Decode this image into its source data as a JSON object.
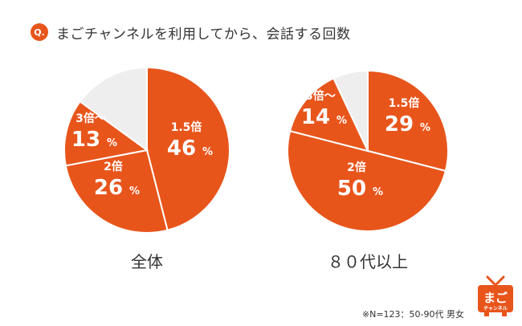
{
  "question": {
    "badge": "Q.",
    "title": "まごチャンネルを利用してから、会話する回数"
  },
  "colors": {
    "accent": "#e8551b",
    "other": "#ffffff",
    "empty": "#eeeeee"
  },
  "chart_data": [
    {
      "type": "pie",
      "title": "全体",
      "categories": [
        "1.5倍",
        "2倍",
        "3倍～",
        ""
      ],
      "values": [
        46,
        26,
        13,
        15
      ],
      "value_labels": [
        "46",
        "26",
        "13",
        ""
      ],
      "unit": "%"
    },
    {
      "type": "pie",
      "title": "８０代以上",
      "categories": [
        "1.5倍",
        "2倍",
        "3倍～",
        ""
      ],
      "values": [
        29,
        50,
        14,
        7
      ],
      "value_labels": [
        "29",
        "50",
        "14",
        ""
      ],
      "unit": "%"
    }
  ],
  "footnote": "※N=123：50-90代 男女",
  "logo": {
    "line1": "まご",
    "line2": "チャンネル"
  }
}
